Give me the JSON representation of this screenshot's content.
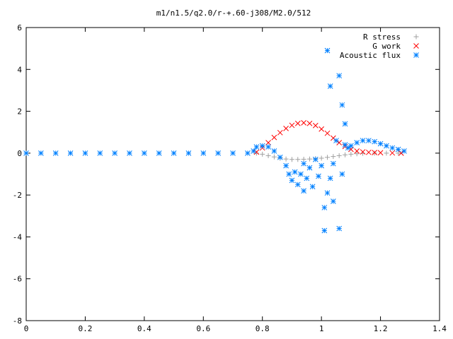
{
  "chart_data": {
    "type": "scatter",
    "title": "m1/n1.5/q2.0/r-+.60-j308/M2.0/512",
    "xlabel": "",
    "ylabel": "",
    "xlim": [
      0,
      1.4
    ],
    "ylim": [
      -8,
      6
    ],
    "x_ticks": [
      "0",
      "0.2",
      "0.4",
      "0.6",
      "0.8",
      "1",
      "1.2",
      "1.4"
    ],
    "y_ticks": [
      "-8",
      "-6",
      "-4",
      "-2",
      "0",
      "2",
      "4",
      "6"
    ],
    "grid": false,
    "legend_position": "top-right",
    "series": [
      {
        "name": "R stress",
        "marker": "+",
        "color": "#a0a0a0",
        "points": [
          [
            0.78,
            0.0
          ],
          [
            0.8,
            -0.05
          ],
          [
            0.82,
            -0.12
          ],
          [
            0.84,
            -0.18
          ],
          [
            0.86,
            -0.24
          ],
          [
            0.88,
            -0.28
          ],
          [
            0.9,
            -0.3
          ],
          [
            0.92,
            -0.3
          ],
          [
            0.94,
            -0.29
          ],
          [
            0.96,
            -0.28
          ],
          [
            0.98,
            -0.26
          ],
          [
            1.0,
            -0.24
          ],
          [
            1.02,
            -0.2
          ],
          [
            1.04,
            -0.16
          ],
          [
            1.06,
            -0.12
          ],
          [
            1.08,
            -0.08
          ],
          [
            1.1,
            -0.05
          ],
          [
            1.12,
            -0.03
          ],
          [
            1.14,
            -0.01
          ],
          [
            1.18,
            0.0
          ],
          [
            1.22,
            0.0
          ],
          [
            1.26,
            0.0
          ]
        ]
      },
      {
        "name": "G work",
        "marker": "x",
        "color": "#ff0000",
        "points": [
          [
            0.78,
            0.05
          ],
          [
            0.8,
            0.25
          ],
          [
            0.82,
            0.5
          ],
          [
            0.84,
            0.75
          ],
          [
            0.86,
            0.98
          ],
          [
            0.88,
            1.18
          ],
          [
            0.9,
            1.33
          ],
          [
            0.92,
            1.42
          ],
          [
            0.94,
            1.45
          ],
          [
            0.96,
            1.42
          ],
          [
            0.98,
            1.32
          ],
          [
            1.0,
            1.15
          ],
          [
            1.02,
            0.95
          ],
          [
            1.04,
            0.72
          ],
          [
            1.06,
            0.5
          ],
          [
            1.08,
            0.32
          ],
          [
            1.1,
            0.18
          ],
          [
            1.12,
            0.1
          ],
          [
            1.14,
            0.06
          ],
          [
            1.16,
            0.04
          ],
          [
            1.18,
            0.03
          ],
          [
            1.2,
            0.02
          ],
          [
            1.24,
            0.01
          ],
          [
            1.27,
            0.0
          ]
        ]
      },
      {
        "name": "Acoustic flux",
        "marker": "*",
        "color": "#0080ff",
        "points": [
          [
            0.0,
            0.0
          ],
          [
            0.05,
            0.0
          ],
          [
            0.1,
            0.0
          ],
          [
            0.15,
            0.0
          ],
          [
            0.2,
            0.0
          ],
          [
            0.25,
            0.0
          ],
          [
            0.3,
            0.0
          ],
          [
            0.35,
            0.0
          ],
          [
            0.4,
            0.0
          ],
          [
            0.45,
            0.0
          ],
          [
            0.5,
            0.0
          ],
          [
            0.55,
            0.0
          ],
          [
            0.6,
            0.0
          ],
          [
            0.65,
            0.0
          ],
          [
            0.7,
            0.0
          ],
          [
            0.75,
            0.0
          ],
          [
            0.77,
            0.1
          ],
          [
            0.78,
            0.3
          ],
          [
            0.8,
            0.35
          ],
          [
            0.82,
            0.3
          ],
          [
            0.84,
            0.1
          ],
          [
            0.86,
            -0.2
          ],
          [
            0.88,
            -0.6
          ],
          [
            0.89,
            -1.0
          ],
          [
            0.9,
            -1.3
          ],
          [
            0.91,
            -0.9
          ],
          [
            0.92,
            -1.5
          ],
          [
            0.93,
            -1.0
          ],
          [
            0.94,
            -0.5
          ],
          [
            0.94,
            -1.8
          ],
          [
            0.95,
            -1.2
          ],
          [
            0.96,
            -0.7
          ],
          [
            0.97,
            -1.6
          ],
          [
            0.98,
            -0.3
          ],
          [
            0.99,
            -1.1
          ],
          [
            1.0,
            -0.6
          ],
          [
            1.01,
            -2.6
          ],
          [
            1.01,
            -3.7
          ],
          [
            1.02,
            -1.9
          ],
          [
            1.02,
            4.9
          ],
          [
            1.03,
            3.2
          ],
          [
            1.03,
            -1.2
          ],
          [
            1.04,
            -2.3
          ],
          [
            1.04,
            -0.5
          ],
          [
            1.05,
            0.6
          ],
          [
            1.06,
            3.7
          ],
          [
            1.06,
            -3.6
          ],
          [
            1.07,
            2.3
          ],
          [
            1.07,
            -1.0
          ],
          [
            1.08,
            1.4
          ],
          [
            1.08,
            0.4
          ],
          [
            1.09,
            0.25
          ],
          [
            1.1,
            0.35
          ],
          [
            1.12,
            0.5
          ],
          [
            1.14,
            0.6
          ],
          [
            1.16,
            0.6
          ],
          [
            1.18,
            0.55
          ],
          [
            1.2,
            0.45
          ],
          [
            1.22,
            0.35
          ],
          [
            1.24,
            0.25
          ],
          [
            1.26,
            0.18
          ],
          [
            1.28,
            0.1
          ]
        ]
      }
    ]
  }
}
